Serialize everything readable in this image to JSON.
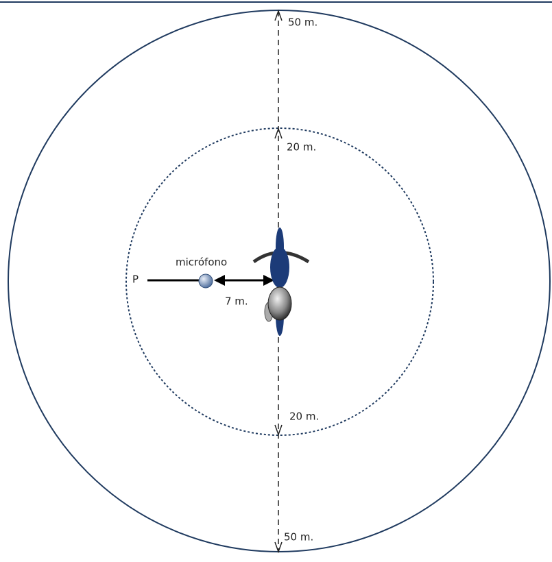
{
  "diagram": {
    "outer_top_label": "50 m.",
    "inner_top_label": "20 m.",
    "inner_bottom_label": "20 m.",
    "outer_bottom_label": "50 m.",
    "microphone_label": "micrófono",
    "point_label": "P",
    "distance_label": "7 m."
  }
}
